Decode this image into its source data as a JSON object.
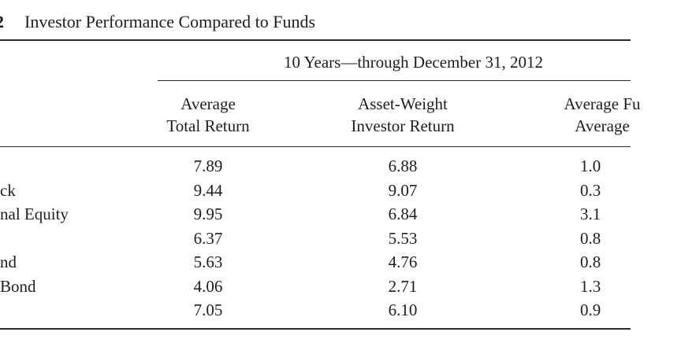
{
  "caption": {
    "number": "2",
    "title": "Investor Performance Compared to Funds"
  },
  "spanning_header": "10 Years—through December 31, 2012",
  "column_headers": [
    {
      "line1": "Average",
      "line2": "Total Return"
    },
    {
      "line1": "Asset-Weight",
      "line2": "Investor Return"
    },
    {
      "line1": "Average Fu",
      "line2": "Average"
    }
  ],
  "rows": [
    {
      "label": "",
      "avg_total_return": "7.89",
      "asset_weight_investor_return": "6.88",
      "third": "1.0"
    },
    {
      "label": "ck",
      "avg_total_return": "9.44",
      "asset_weight_investor_return": "9.07",
      "third": "0.3"
    },
    {
      "label": "nal Equity",
      "avg_total_return": "9.95",
      "asset_weight_investor_return": "6.84",
      "third": "3.1"
    },
    {
      "label": "",
      "avg_total_return": "6.37",
      "asset_weight_investor_return": "5.53",
      "third": "0.8"
    },
    {
      "label": "nd",
      "avg_total_return": "5.63",
      "asset_weight_investor_return": "4.76",
      "third": "0.8"
    },
    {
      "label": "Bond",
      "avg_total_return": "4.06",
      "asset_weight_investor_return": "2.71",
      "third": "1.3"
    },
    {
      "label": "",
      "avg_total_return": "7.05",
      "asset_weight_investor_return": "6.10",
      "third": "0.9"
    }
  ]
}
